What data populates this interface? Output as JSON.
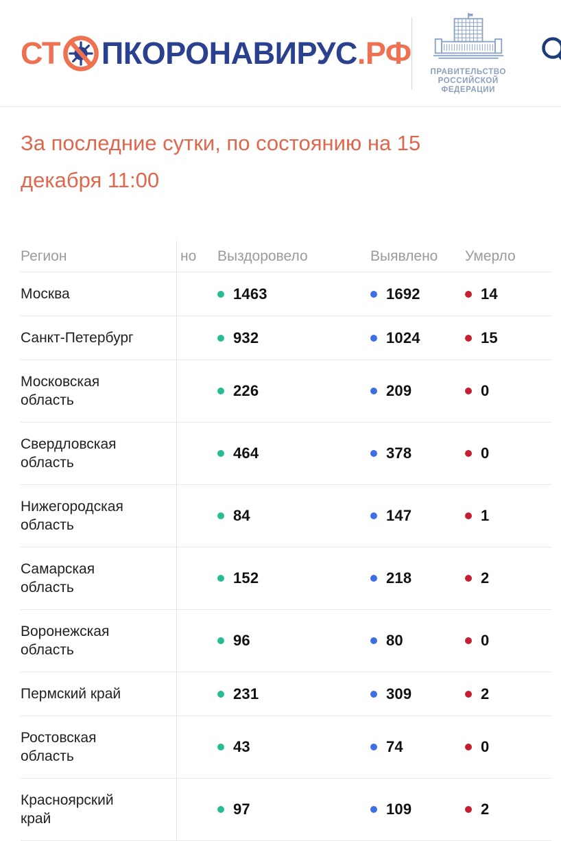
{
  "header": {
    "logo": {
      "prefix": "СТ",
      "middle": "ПКОРОНАВИРУС",
      "suffix": ".РФ"
    },
    "government": {
      "line1": "ПРАВИТЕЛЬСТВО",
      "line2": "РОССИЙСКОЙ",
      "line3": "ФЕДЕРАЦИИ"
    },
    "icons": [
      "virus-no-sign-icon",
      "government-building-icon",
      "search-icon",
      "hamburger-menu-icon"
    ]
  },
  "title": "За последние сутки, по состоянию на 15\nдекабря 11:00",
  "colors": {
    "accent_orange": "#ee7252",
    "logo_navy": "#2b418f",
    "icon_navy": "#1d3c78",
    "title_orange": "#e0674d",
    "recovered_dot": "#26bd92",
    "confirmed_dot": "#3e6fe2",
    "deaths_dot": "#c41f30"
  },
  "table": {
    "columns": {
      "region": "Регион",
      "clipped": "но",
      "recovered": "Выздоровело",
      "confirmed": "Выявлено",
      "deaths": "Умерло"
    },
    "rows": [
      {
        "region": "Москва",
        "recovered": "1463",
        "confirmed": "1692",
        "deaths": "14"
      },
      {
        "region": "Санкт-Петербург",
        "recovered": "932",
        "confirmed": "1024",
        "deaths": "15"
      },
      {
        "region": "Московская\nобласть",
        "recovered": "226",
        "confirmed": "209",
        "deaths": "0"
      },
      {
        "region": "Свердловская\nобласть",
        "recovered": "464",
        "confirmed": "378",
        "deaths": "0"
      },
      {
        "region": "Нижегородская\nобласть",
        "recovered": "84",
        "confirmed": "147",
        "deaths": "1"
      },
      {
        "region": "Самарская\nобласть",
        "recovered": "152",
        "confirmed": "218",
        "deaths": "2"
      },
      {
        "region": "Воронежская\nобласть",
        "recovered": "96",
        "confirmed": "80",
        "deaths": "0"
      },
      {
        "region": "Пермский край",
        "recovered": "231",
        "confirmed": "309",
        "deaths": "2"
      },
      {
        "region": "Ростовская\nобласть",
        "recovered": "43",
        "confirmed": "74",
        "deaths": "0"
      },
      {
        "region": "Красноярский\nкрай",
        "recovered": "97",
        "confirmed": "109",
        "deaths": "2"
      }
    ]
  }
}
